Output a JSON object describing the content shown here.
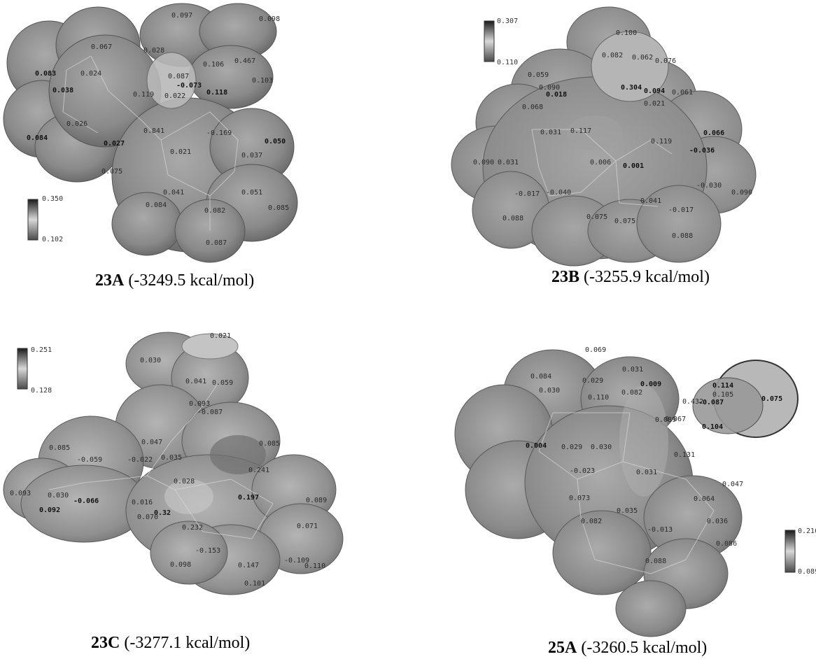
{
  "panels": [
    {
      "id": "23A",
      "name": "23A",
      "energy": "(-3249.5 kcal/mol)",
      "scale": {
        "max": "0.350",
        "min": "0.102"
      },
      "labels": [
        "0.067",
        "0.097",
        "0.098",
        "0.083",
        "0.024",
        "0.028",
        "0.106",
        "0.467",
        "0.038",
        "0.087",
        "0.119",
        "-0.073",
        "0.118",
        "0.022",
        "0.103",
        "0.026",
        "-0.169",
        "0.084",
        "0.841",
        "0.027",
        "0.021",
        "0.037",
        "0.050",
        "0.075",
        "0.041",
        "0.051",
        "0.084",
        "0.082",
        "0.085",
        "0.087"
      ]
    },
    {
      "id": "23B",
      "name": "23B",
      "energy": "(-3255.9 kcal/mol)",
      "scale": {
        "max": "0.307",
        "min": "0.110"
      },
      "labels": [
        "0.100",
        "0.082",
        "0.062",
        "0.076",
        "0.059",
        "0.090",
        "0.304",
        "0.094",
        "0.061",
        "0.018",
        "0.021",
        "0.068",
        "0.031",
        "0.117",
        "0.119",
        "0.066",
        "-0.036",
        "0.090",
        "0.031",
        "0.006",
        "0.001",
        "-0.017",
        "-0.040",
        "-0.030",
        "0.090",
        "0.041",
        "-0.017",
        "0.088",
        "0.075",
        "0.075",
        "0.088"
      ]
    },
    {
      "id": "23C",
      "name": "23C",
      "energy": "(-3277.1 kcal/mol)",
      "scale": {
        "max": "0.251",
        "min": "0.128"
      },
      "labels": [
        "0.021",
        "0.030",
        "0.041",
        "0.059",
        "0.093",
        "-0.087",
        "0.047",
        "0.085",
        "0.035",
        "0.241",
        "0.085",
        "-0.059",
        "-0.022",
        "0.028",
        "0.093",
        "0.030",
        "-0.066",
        "0.016",
        "0.32",
        "0.197",
        "0.089",
        "0.092",
        "0.070",
        "0.232",
        "0.071",
        "-0.153",
        "-0.109",
        "0.098",
        "0.147",
        "0.110",
        "0.101"
      ]
    },
    {
      "id": "25A",
      "name": "25A",
      "energy": "(-3260.5 kcal/mol)",
      "scale": {
        "max": "0.216",
        "min": "0.089"
      },
      "labels": [
        "0.069",
        "0.031",
        "0.084",
        "0.029",
        "0.009",
        "0.114",
        "0.030",
        "0.082",
        "0.105",
        "0.075",
        "0.432",
        "-0.087",
        "0.110",
        "0.089",
        "0.067",
        "0.104",
        "0.004",
        "0.029",
        "0.030",
        "0.131",
        "-0.023",
        "0.031",
        "0.047",
        "0.073",
        "0.064",
        "0.035",
        "0.082",
        "0.036",
        "-0.013",
        "0.086",
        "0.088"
      ]
    }
  ]
}
